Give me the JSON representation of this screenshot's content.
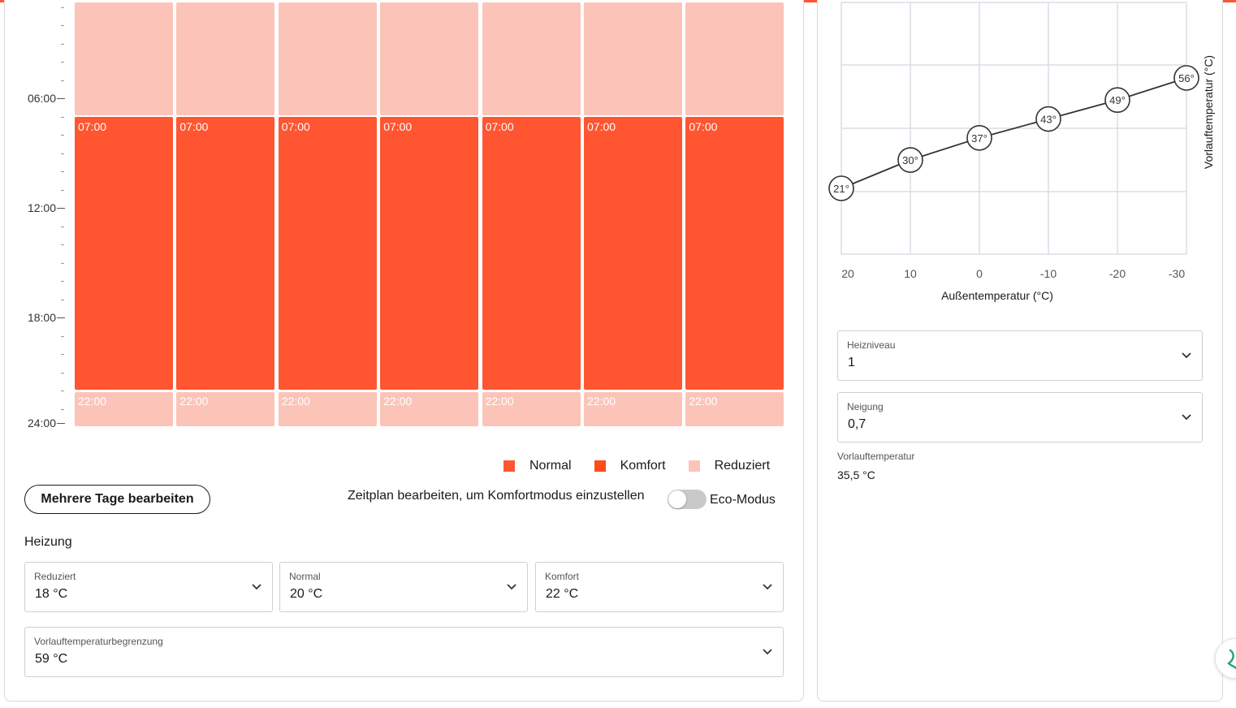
{
  "time_axis": [
    "06:00",
    "12:00",
    "18:00",
    "24:00"
  ],
  "schedule": {
    "days": [
      {
        "start": "07:00",
        "end": "22:00"
      },
      {
        "start": "07:00",
        "end": "22:00"
      },
      {
        "start": "07:00",
        "end": "22:00"
      },
      {
        "start": "07:00",
        "end": "22:00"
      },
      {
        "start": "07:00",
        "end": "22:00"
      },
      {
        "start": "07:00",
        "end": "22:00"
      },
      {
        "start": "07:00",
        "end": "22:00"
      }
    ]
  },
  "legend": {
    "normal": "Normal",
    "komfort": "Komfort",
    "reduziert": "Reduziert"
  },
  "colors": {
    "normal": "#ff5530",
    "komfort": "#ff4a1c",
    "reduziert": "#fcc4b8",
    "accent": "#ff5530"
  },
  "actions": {
    "multi_days": "Mehrere Tage bearbeiten",
    "hint": "Zeitplan bearbeiten, um Komfortmodus einzustellen",
    "eco_label": "Eco-Modus",
    "eco_on": false
  },
  "heating": {
    "title": "Heizung",
    "reduziert": {
      "label": "Reduziert",
      "value": "18 °C"
    },
    "normal": {
      "label": "Normal",
      "value": "20 °C"
    },
    "komfort": {
      "label": "Komfort",
      "value": "22 °C"
    },
    "limit": {
      "label": "Vorlauftemperaturbegrenzung",
      "value": "59 °C"
    }
  },
  "curve": {
    "heizniveau": {
      "label": "Heizniveau",
      "value": "1"
    },
    "neigung": {
      "label": "Neigung",
      "value": "0,7"
    },
    "vorlauf": {
      "label": "Vorlauftemperatur",
      "value": "35,5 °C"
    }
  },
  "chart_data": {
    "type": "line",
    "x": [
      20,
      10,
      0,
      -10,
      -20,
      -30
    ],
    "y": [
      21,
      30,
      37,
      43,
      49,
      56
    ],
    "point_labels": [
      "21°",
      "30°",
      "37°",
      "43°",
      "49°",
      "56°"
    ],
    "x_ticks": [
      "20",
      "10",
      "0",
      "-10",
      "-20",
      "-30"
    ],
    "xlabel": "Außentemperatur (°C)",
    "ylabel": "Vorlauftemperatur (°C)",
    "grid": true
  }
}
